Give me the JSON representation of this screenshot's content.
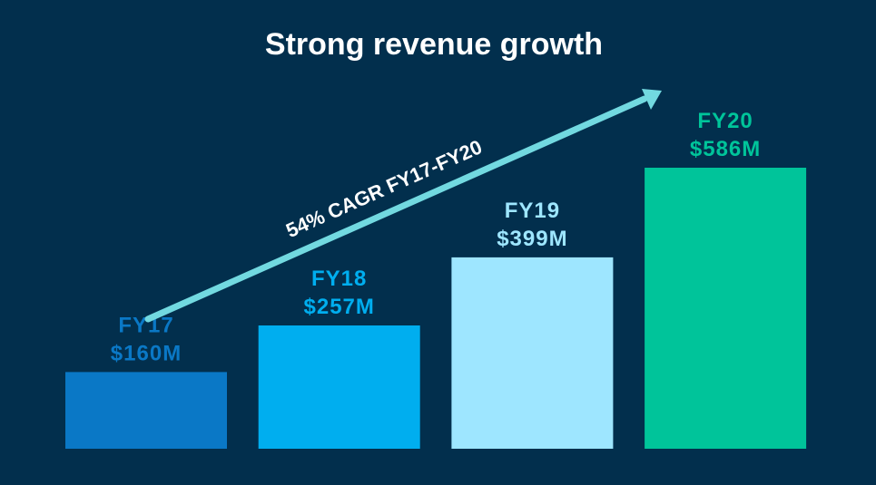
{
  "chart_data": {
    "type": "bar",
    "title": "Strong revenue growth",
    "categories": [
      "FY17",
      "FY18",
      "FY19",
      "FY20"
    ],
    "values": [
      160,
      257,
      399,
      586
    ],
    "value_labels": [
      "$160M",
      "$257M",
      "$399M",
      "$586M"
    ],
    "unit": "$M",
    "ylim": [
      0,
      600
    ],
    "grid": false,
    "bar_colors": [
      "#0a78c6",
      "#00aeef",
      "#9ee6ff",
      "#00c49a"
    ],
    "annotation": {
      "text": "54% CAGR FY17-FY20",
      "arrow_color": "#72d9e0"
    }
  },
  "colors": {
    "background": "#022f4d",
    "title": "#ffffff"
  }
}
